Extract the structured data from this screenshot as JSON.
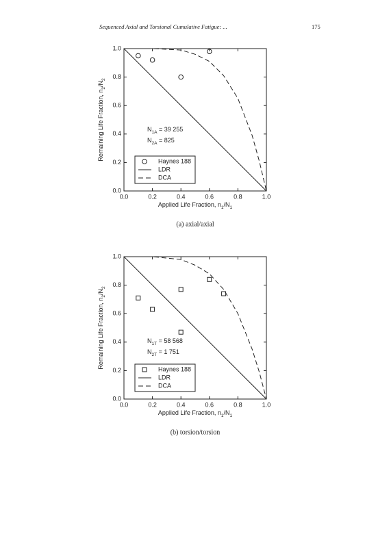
{
  "header": {
    "running_title": "Sequenced Axial and Torsional Cumulative Fatigue: ...",
    "page_number": "175"
  },
  "chart_data": [
    {
      "type": "scatter",
      "caption": "(a) axial/axial",
      "xlabel": [
        "Applied Life Fraction, n",
        "1",
        "/N",
        "1"
      ],
      "ylabel": [
        "Remaining Life Fraction, n",
        "2",
        "/N",
        "2"
      ],
      "annotations": [
        [
          "N",
          "1A",
          " = 39 255"
        ],
        [
          "N",
          "2A",
          " = 825"
        ]
      ],
      "xlim": [
        0,
        1
      ],
      "ylim": [
        0,
        1
      ],
      "xticks": [
        {
          "value": 0,
          "label": "0.0"
        },
        0.2,
        0.4,
        0.6,
        0.8,
        {
          "value": 1,
          "label": "1.0"
        }
      ],
      "yticks": [
        {
          "value": 0,
          "label": "0.0"
        },
        0.2,
        0.4,
        0.6,
        0.8,
        {
          "value": 1,
          "label": "1.0"
        }
      ],
      "series": [
        {
          "name": "Haynes 188",
          "marker": "circle",
          "color": "#222",
          "x": [
            0.1,
            0.2,
            0.4,
            0.6
          ],
          "values": [
            0.95,
            0.92,
            0.8,
            0.98
          ]
        },
        {
          "name": "LDR",
          "marker": "none",
          "dash": false,
          "color": "#222",
          "x": [
            0,
            1
          ],
          "values": [
            1,
            0
          ]
        },
        {
          "name": "DCA",
          "marker": "none",
          "dash": true,
          "color": "#222",
          "x": [
            0,
            0.2,
            0.4,
            0.5,
            0.6,
            0.7,
            0.8,
            0.9,
            0.95,
            1
          ],
          "values": [
            1,
            1,
            0.99,
            0.96,
            0.91,
            0.81,
            0.65,
            0.39,
            0.21,
            0
          ]
        }
      ]
    },
    {
      "type": "scatter",
      "caption": "(b) torsion/torsion",
      "xlabel": [
        "Applied Life Fraction, n",
        "1",
        "/N",
        "1"
      ],
      "ylabel": [
        "Remaining Life Fraction, n",
        "2",
        "/N",
        "2"
      ],
      "annotations": [
        [
          "N",
          "1T",
          " = 58 568"
        ],
        [
          "N",
          "2T",
          " = 1 751"
        ]
      ],
      "xlim": [
        0,
        1
      ],
      "ylim": [
        0,
        1
      ],
      "xticks": [
        {
          "value": 0,
          "label": "0.0"
        },
        0.2,
        0.4,
        0.6,
        0.8,
        {
          "value": 1,
          "label": "1.0"
        }
      ],
      "yticks": [
        {
          "value": 0,
          "label": "0.0"
        },
        0.2,
        0.4,
        0.6,
        0.8,
        {
          "value": 1,
          "label": "1.0"
        }
      ],
      "series": [
        {
          "name": "Haynes 188",
          "marker": "square",
          "color": "#222",
          "x": [
            0.1,
            0.2,
            0.4,
            0.4,
            0.6,
            0.7
          ],
          "values": [
            0.71,
            0.63,
            0.77,
            0.47,
            0.84,
            0.74
          ]
        },
        {
          "name": "LDR",
          "marker": "none",
          "dash": false,
          "color": "#222",
          "x": [
            0,
            1
          ],
          "values": [
            1,
            0
          ]
        },
        {
          "name": "DCA",
          "marker": "none",
          "dash": true,
          "color": "#222",
          "x": [
            0,
            0.2,
            0.4,
            0.5,
            0.6,
            0.7,
            0.8,
            0.9,
            0.95,
            1
          ],
          "values": [
            1,
            1,
            0.98,
            0.94,
            0.88,
            0.77,
            0.6,
            0.35,
            0.19,
            0
          ]
        }
      ]
    }
  ]
}
